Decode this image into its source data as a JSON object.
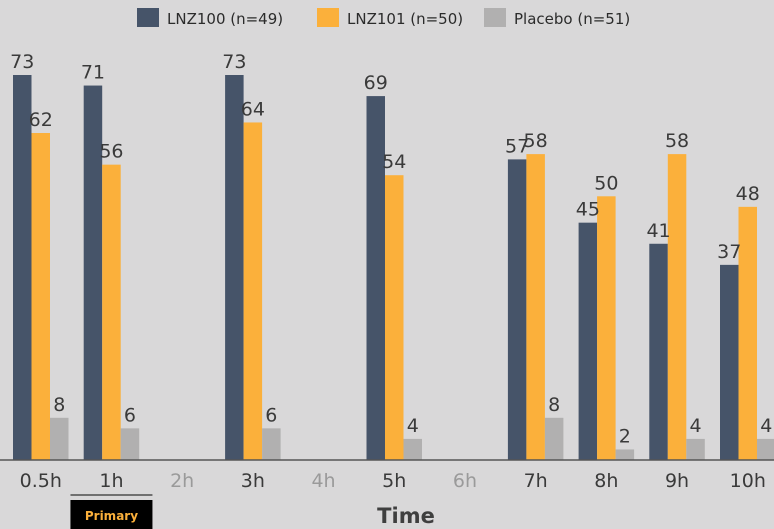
{
  "chart_data": {
    "type": "bar",
    "categories": [
      "0.5h",
      "1h",
      "2h",
      "3h",
      "4h",
      "5h",
      "6h",
      "7h",
      "8h",
      "9h",
      "10h"
    ],
    "series": [
      {
        "name": "LNZ100 (n=49)",
        "color": "#465469",
        "values": [
          73,
          71,
          null,
          73,
          null,
          69,
          null,
          57,
          45,
          41,
          37
        ]
      },
      {
        "name": "LNZ101 (n=50)",
        "color": "#fbb03b",
        "values": [
          62,
          56,
          null,
          64,
          null,
          54,
          null,
          58,
          50,
          58,
          48
        ]
      },
      {
        "name": "Placebo (n=51)",
        "color": "#b1b0b0",
        "values": [
          8,
          6,
          null,
          6,
          null,
          4,
          null,
          8,
          2,
          4,
          4
        ]
      }
    ],
    "xlabel": "Time",
    "ylabel": "",
    "ylim": [
      0,
      73
    ],
    "grid": false,
    "legend": "top-center",
    "badge": {
      "label": "Primary",
      "category": "1h",
      "text_color": "#fbb03b",
      "background": "#000000"
    },
    "tick_colors": {
      "with_data": "#3a3a3a",
      "no_data": "#9a9a9a"
    }
  }
}
